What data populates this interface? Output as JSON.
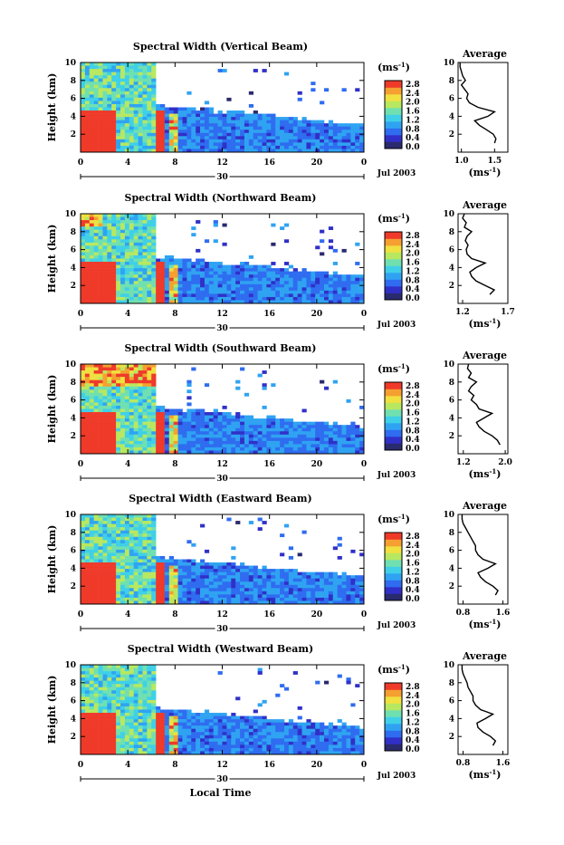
{
  "chart_data": [
    {
      "type": "heatmap",
      "title": "Spectral Width (Vertical Beam)",
      "ylabel": "Height (km)",
      "xticks": [
        "0",
        "4",
        "8",
        "12",
        "16",
        "20",
        "0"
      ],
      "ylim": [
        0,
        10
      ],
      "xlim": [
        0,
        24
      ],
      "yticks": [
        "2",
        "4",
        "6",
        "8",
        "10"
      ],
      "date_label": "30",
      "month_label": "Jul 2003",
      "colorbar": {
        "unit_base": "(ms",
        "unit_exp": "-1",
        "unit_close": ")",
        "ticks": [
          "2.8",
          "2.4",
          "2.0",
          "1.6",
          "1.2",
          "0.8",
          "0.4",
          "0.0"
        ],
        "range": [
          0,
          2.8
        ]
      },
      "avg_profile": {
        "title": "Average",
        "xlabel_base": "(ms",
        "xlabel_exp": "-1",
        "xlabel_close": ")",
        "xticks": [
          "1.0",
          "1.5"
        ],
        "xrange": [
          0.95,
          1.7
        ],
        "height_km": [
          1,
          1.5,
          2,
          2.5,
          3,
          3.5,
          4,
          4.5,
          5,
          5.5,
          6,
          6.5,
          7,
          7.5,
          8,
          8.5,
          9,
          9.5,
          10
        ],
        "width_ms": [
          1.5,
          1.52,
          1.48,
          1.38,
          1.27,
          1.2,
          1.4,
          1.5,
          1.25,
          1.12,
          1.08,
          1.1,
          1.05,
          1.0,
          1.06,
          1.02,
          1.0,
          0.98,
          0.98
        ]
      }
    },
    {
      "type": "heatmap",
      "title": "Spectral Width (Northward Beam)",
      "ylabel": "Height (km)",
      "xticks": [
        "0",
        "4",
        "8",
        "12",
        "16",
        "20",
        "0"
      ],
      "ylim": [
        0,
        10
      ],
      "xlim": [
        0,
        24
      ],
      "yticks": [
        "2",
        "4",
        "6",
        "8",
        "10"
      ],
      "date_label": "30",
      "month_label": "Jul 2003",
      "colorbar": {
        "unit_base": "(ms",
        "unit_exp": "-1",
        "unit_close": ")",
        "ticks": [
          "2.8",
          "2.4",
          "2.0",
          "1.6",
          "1.2",
          "0.8",
          "0.4",
          "0.0"
        ],
        "range": [
          0,
          2.8
        ]
      },
      "avg_profile": {
        "title": "Average",
        "xlabel_base": "(ms",
        "xlabel_exp": "-1",
        "xlabel_close": ")",
        "xticks": [
          "1.2",
          "1.7"
        ],
        "xrange": [
          1.15,
          1.7
        ],
        "height_km": [
          1,
          1.5,
          2,
          2.5,
          3,
          3.5,
          4,
          4.5,
          5,
          5.5,
          6,
          6.5,
          7,
          7.5,
          8,
          8.5,
          9,
          9.5,
          10
        ],
        "width_ms": [
          1.5,
          1.55,
          1.45,
          1.35,
          1.3,
          1.28,
          1.35,
          1.45,
          1.3,
          1.25,
          1.24,
          1.26,
          1.23,
          1.25,
          1.3,
          1.22,
          1.24,
          1.2,
          1.22
        ]
      }
    },
    {
      "type": "heatmap",
      "title": "Spectral Width (Southward Beam)",
      "ylabel": "Height (km)",
      "xticks": [
        "0",
        "4",
        "8",
        "12",
        "16",
        "20",
        "0"
      ],
      "ylim": [
        0,
        10
      ],
      "xlim": [
        0,
        24
      ],
      "yticks": [
        "2",
        "4",
        "6",
        "8",
        "10"
      ],
      "date_label": "30",
      "month_label": "Jul 2003",
      "colorbar": {
        "unit_base": "(ms",
        "unit_exp": "-1",
        "unit_close": ")",
        "ticks": [
          "2.8",
          "2.4",
          "2.0",
          "1.6",
          "1.2",
          "0.8",
          "0.4",
          "0.0"
        ],
        "range": [
          0,
          2.8
        ]
      },
      "avg_profile": {
        "title": "Average",
        "xlabel_base": "(ms",
        "xlabel_exp": "-1",
        "xlabel_close": ")",
        "xticks": [
          "1.2",
          "2.0"
        ],
        "xrange": [
          1.1,
          2.05
        ],
        "height_km": [
          1,
          1.5,
          2,
          2.5,
          3,
          3.5,
          4,
          4.5,
          5,
          5.5,
          6,
          6.5,
          7,
          7.5,
          8,
          8.5,
          9,
          9.5,
          10
        ],
        "width_ms": [
          1.9,
          1.85,
          1.75,
          1.6,
          1.5,
          1.45,
          1.6,
          1.75,
          1.5,
          1.45,
          1.35,
          1.4,
          1.3,
          1.35,
          1.45,
          1.3,
          1.35,
          1.28,
          1.3
        ]
      }
    },
    {
      "type": "heatmap",
      "title": "Spectral Width (Eastward Beam)",
      "ylabel": "Height (km)",
      "xticks": [
        "0",
        "4",
        "8",
        "12",
        "16",
        "20",
        "0"
      ],
      "ylim": [
        0,
        10
      ],
      "xlim": [
        0,
        24
      ],
      "yticks": [
        "2",
        "4",
        "6",
        "8",
        "10"
      ],
      "date_label": "30",
      "month_label": "Jul 2003",
      "colorbar": {
        "unit_base": "(ms",
        "unit_exp": "-1",
        "unit_close": ")",
        "ticks": [
          "2.8",
          "2.4",
          "2.0",
          "1.6",
          "1.2",
          "0.8",
          "0.4",
          "0.0"
        ],
        "range": [
          0,
          2.8
        ]
      },
      "avg_profile": {
        "title": "Average",
        "xlabel_base": "(ms",
        "xlabel_exp": "-1",
        "xlabel_close": ")",
        "xticks": [
          "0.8",
          "1.6"
        ],
        "xrange": [
          0.7,
          1.7
        ],
        "height_km": [
          1,
          1.5,
          2,
          2.5,
          3,
          3.5,
          4,
          4.5,
          5,
          5.5,
          6,
          6.5,
          7,
          7.5,
          8,
          8.5,
          9,
          9.5,
          10
        ],
        "width_ms": [
          1.45,
          1.5,
          1.4,
          1.25,
          1.15,
          1.1,
          1.3,
          1.45,
          1.2,
          1.1,
          1.05,
          1.05,
          1.0,
          0.95,
          0.9,
          0.85,
          0.8,
          0.78,
          0.78
        ]
      }
    },
    {
      "type": "heatmap",
      "title": "Spectral Width (Westward Beam)",
      "ylabel": "Height (km)",
      "xticks": [
        "0",
        "4",
        "8",
        "12",
        "16",
        "20",
        "0"
      ],
      "ylim": [
        0,
        10
      ],
      "xlim": [
        0,
        24
      ],
      "yticks": [
        "2",
        "4",
        "6",
        "8",
        "10"
      ],
      "date_label": "30",
      "month_label": "Jul 2003",
      "colorbar": {
        "unit_base": "(ms",
        "unit_exp": "-1",
        "unit_close": ")",
        "ticks": [
          "2.8",
          "2.4",
          "2.0",
          "1.6",
          "1.2",
          "0.8",
          "0.4",
          "0.0"
        ],
        "range": [
          0,
          2.8
        ]
      },
      "avg_profile": {
        "title": "Average",
        "xlabel_base": "(ms",
        "xlabel_exp": "-1",
        "xlabel_close": ")",
        "xticks": [
          "0.8",
          "1.6"
        ],
        "xrange": [
          0.7,
          1.7
        ],
        "height_km": [
          1,
          1.5,
          2,
          2.5,
          3,
          3.5,
          4,
          4.5,
          5,
          5.5,
          6,
          6.5,
          7,
          7.5,
          8,
          8.5,
          9,
          9.5,
          10
        ],
        "width_ms": [
          1.4,
          1.45,
          1.35,
          1.2,
          1.1,
          1.08,
          1.25,
          1.4,
          1.15,
          1.05,
          1.0,
          1.0,
          0.95,
          0.9,
          0.88,
          0.84,
          0.8,
          0.78,
          0.78
        ]
      }
    }
  ],
  "figure_xlabel": "Local Time",
  "colors": {
    "palette": [
      "#2a2a6e",
      "#3030c8",
      "#2f6cf0",
      "#2fa3f2",
      "#3fd0e8",
      "#70e0b0",
      "#b8e860",
      "#f0e040",
      "#f5a030",
      "#ef3a2a"
    ]
  }
}
